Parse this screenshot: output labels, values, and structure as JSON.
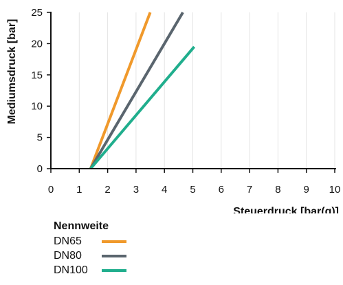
{
  "chart_data": {
    "type": "line",
    "title": "",
    "xlabel": "Steuerdruck [bar(g)]",
    "ylabel": "Mediumsdruck [bar]",
    "xlim": [
      0,
      10
    ],
    "ylim": [
      0,
      25
    ],
    "x_ticks": [
      "0",
      "1",
      "2",
      "3",
      "4",
      "5",
      "6",
      "7",
      "8",
      "9",
      "10"
    ],
    "y_ticks": [
      "0",
      "5",
      "10",
      "15",
      "20",
      "25"
    ],
    "grid": "vertical",
    "legend_title": "Nennweite",
    "legend_position": "bottom-left",
    "series": [
      {
        "name": "DN65",
        "color": "#F0992B",
        "points": [
          [
            1.4,
            0
          ],
          [
            3.5,
            25
          ]
        ]
      },
      {
        "name": "DN80",
        "color": "#5A656E",
        "points": [
          [
            1.4,
            0
          ],
          [
            4.65,
            25
          ]
        ]
      },
      {
        "name": "DN100",
        "color": "#20AE8D",
        "points": [
          [
            1.4,
            0
          ],
          [
            5.05,
            19.5
          ]
        ]
      }
    ]
  }
}
